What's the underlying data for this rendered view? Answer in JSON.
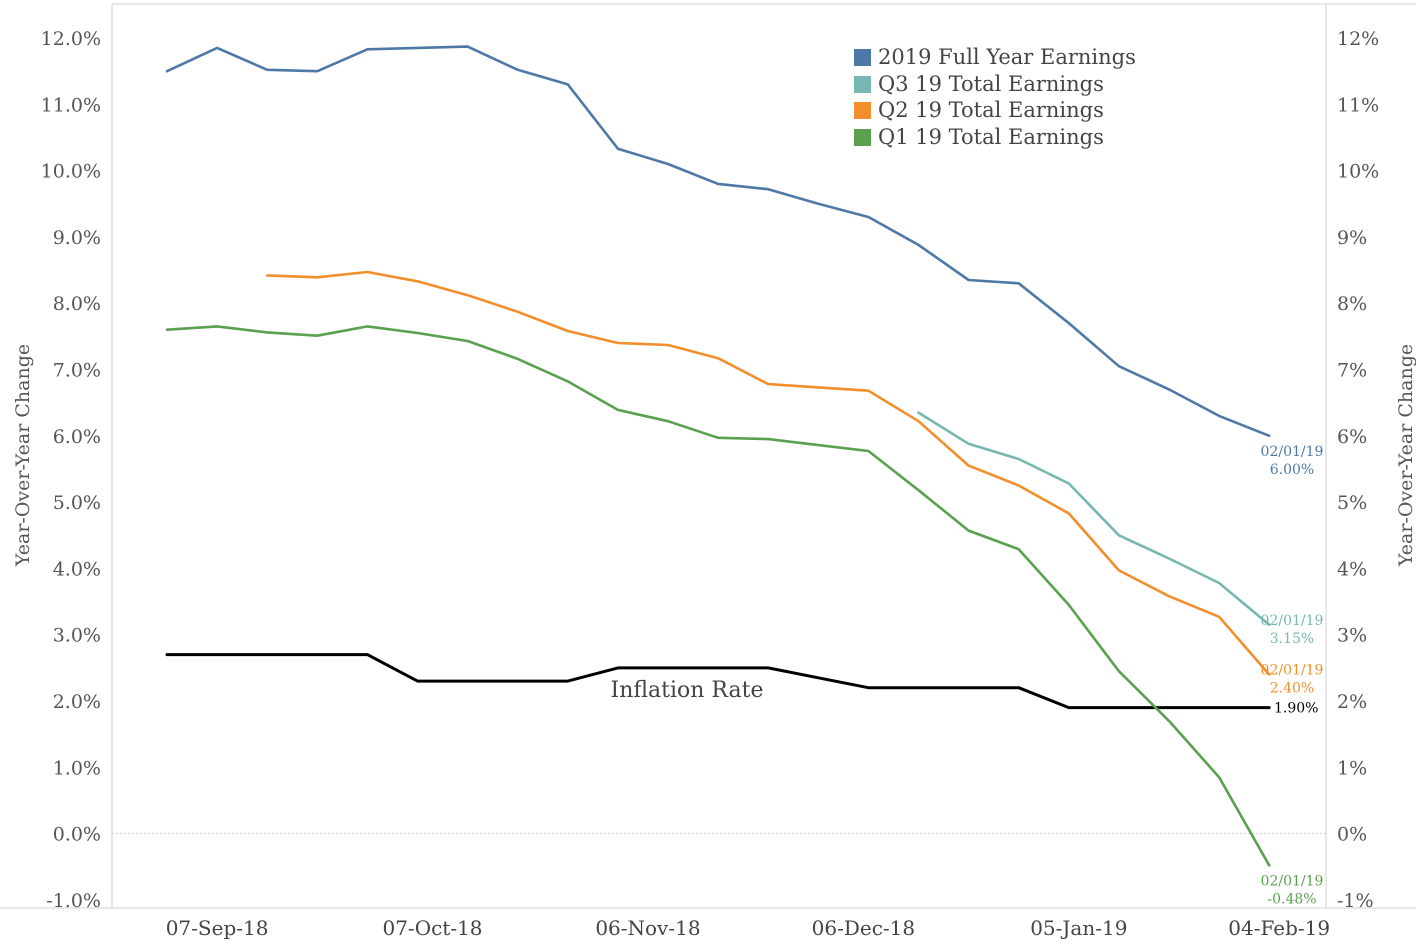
{
  "chart_data": {
    "type": "line",
    "y_left_label": "Year-Over-Year Change",
    "y_right_label": "Year-Over-Year Change",
    "x_tick_labels": [
      "07-Sep-18",
      "07-Oct-18",
      "06-Nov-18",
      "06-Dec-18",
      "05-Jan-19",
      "04-Feb-19"
    ],
    "x_tick_positions": [
      1,
      5.3,
      9.6,
      13.9,
      18.2,
      22.2
    ],
    "y_left_ticks": [
      "12.0%",
      "11.0%",
      "10.0%",
      "9.0%",
      "8.0%",
      "7.0%",
      "6.0%",
      "5.0%",
      "4.0%",
      "3.0%",
      "2.0%",
      "1.0%",
      "0.0%",
      "-1.0%"
    ],
    "y_right_ticks": [
      "12%",
      "11%",
      "10%",
      "9%",
      "8%",
      "7%",
      "6%",
      "5%",
      "4%",
      "3%",
      "2%",
      "1%",
      "0%",
      "-1%"
    ],
    "y_tick_values": [
      12,
      11,
      10,
      9,
      8,
      7,
      6,
      5,
      4,
      3,
      2,
      1,
      0,
      -1
    ],
    "ylim": [
      -1.0,
      12.0
    ],
    "xlim": [
      0,
      23
    ],
    "zero_line": true,
    "legend_position": "top-right",
    "series": [
      {
        "name": "2019 Full Year Earnings",
        "color": "#4e79a7",
        "start_index": 0,
        "values": [
          11.5,
          11.85,
          11.52,
          11.5,
          11.83,
          11.85,
          11.87,
          11.52,
          11.3,
          10.33,
          10.1,
          9.8,
          9.72,
          9.5,
          9.3,
          8.88,
          8.35,
          8.3,
          7.7,
          7.05,
          6.7,
          6.3,
          6.0
        ],
        "end_label_date": "02/01/19",
        "end_label_value": "6.00%"
      },
      {
        "name": "Q3 19 Total Earnings",
        "color": "#76b7b2",
        "start_index": 15,
        "values": [
          6.35,
          5.88,
          5.65,
          5.28,
          4.5,
          4.15,
          3.78,
          3.15
        ],
        "end_label_date": "02/01/19",
        "end_label_value": "3.15%"
      },
      {
        "name": "Q2 19 Total Earnings",
        "color": "#f28e2b",
        "start_index": 2,
        "values": [
          8.42,
          8.39,
          8.47,
          8.33,
          8.12,
          7.87,
          7.58,
          7.4,
          7.37,
          7.17,
          6.78,
          6.73,
          6.68,
          6.22,
          5.55,
          5.25,
          4.83,
          3.97,
          3.58,
          3.27,
          2.4
        ],
        "end_label_date": "02/01/19",
        "end_label_value": "2.40%"
      },
      {
        "name": "Q1 19 Total Earnings",
        "color": "#59a14f",
        "start_index": 0,
        "values": [
          7.6,
          7.65,
          7.56,
          7.51,
          7.65,
          7.55,
          7.43,
          7.16,
          6.82,
          6.39,
          6.22,
          5.97,
          5.95,
          5.86,
          5.77,
          5.18,
          4.57,
          4.29,
          3.45,
          2.45,
          1.7,
          0.85,
          -0.48
        ],
        "end_label_date": "02/01/19",
        "end_label_value": "-0.48%"
      },
      {
        "name": "Inflation Rate",
        "color": "#000000",
        "start_index": 0,
        "values": [
          2.7,
          2.7,
          2.7,
          2.7,
          2.7,
          2.3,
          2.3,
          2.3,
          2.3,
          2.5,
          2.5,
          2.5,
          2.5,
          2.35,
          2.2,
          2.2,
          2.2,
          2.2,
          1.9,
          1.9,
          1.9,
          1.9,
          1.9
        ],
        "end_label_value": "1.90%",
        "inline_label": "Inflation Rate"
      }
    ]
  }
}
